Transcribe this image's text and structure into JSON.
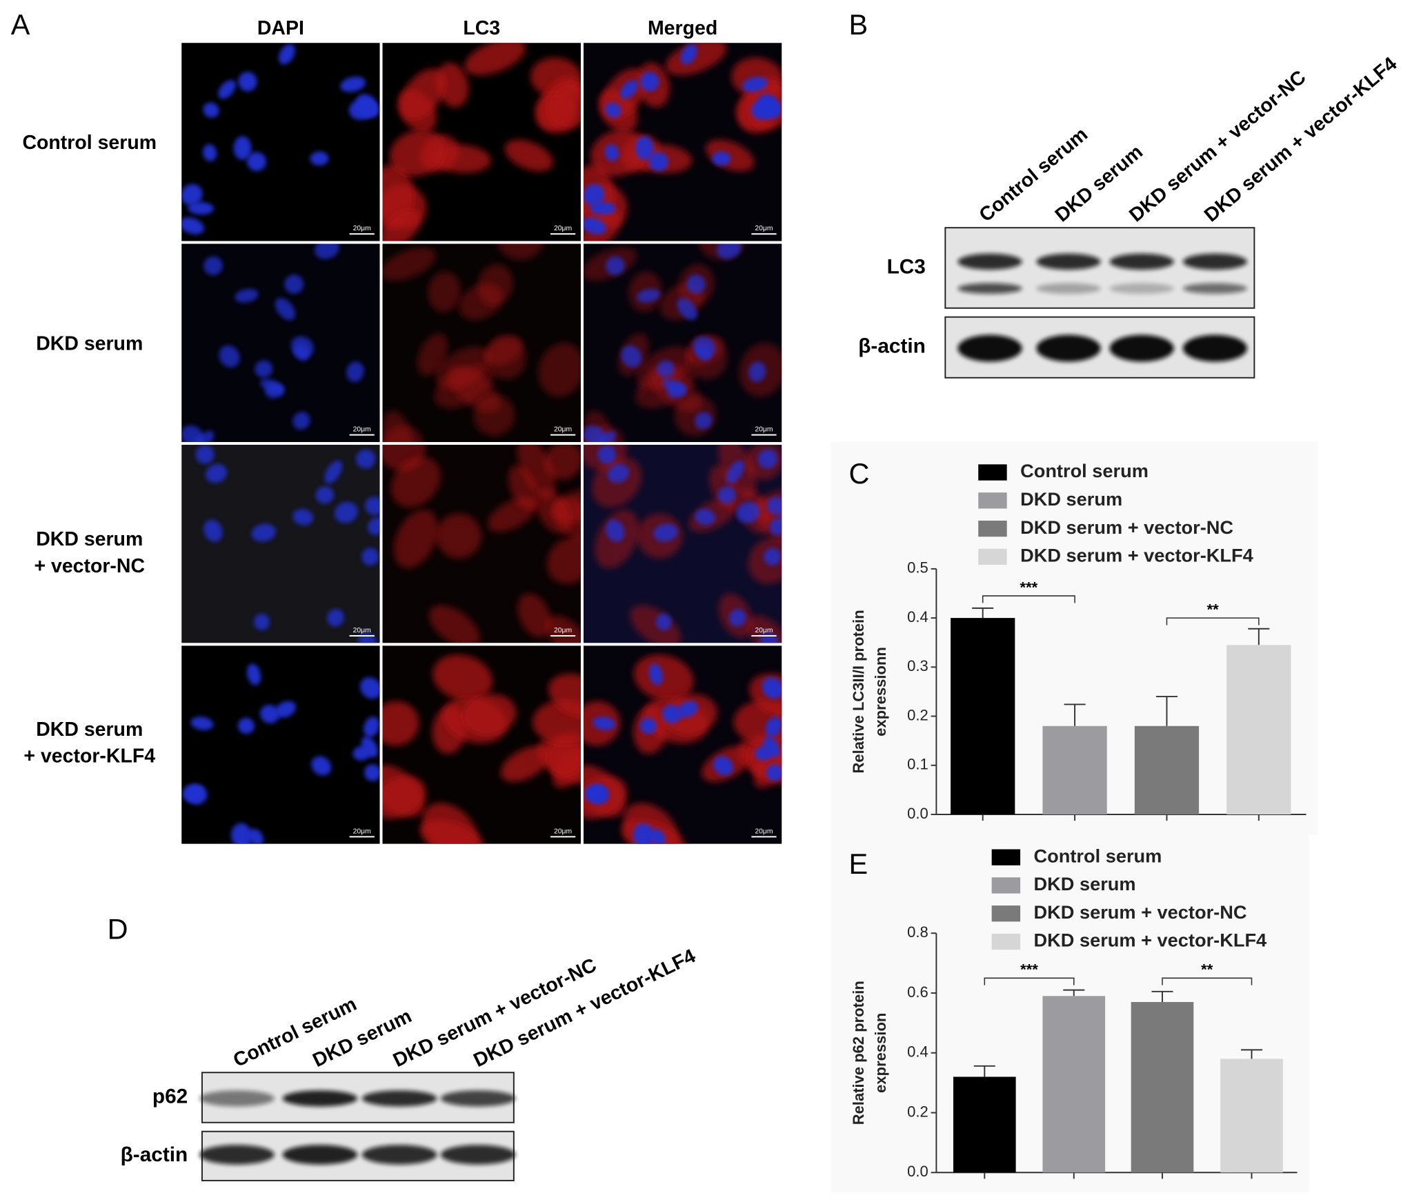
{
  "microscopy": {
    "panel_label": "A",
    "columns": [
      "DAPI",
      "LC3",
      "Merged"
    ],
    "rows": [
      [
        "Control serum"
      ],
      [
        "DKD serum"
      ],
      [
        "DKD serum",
        "+ vector-NC"
      ],
      [
        "DKD serum",
        "+ vector-KLF4"
      ]
    ],
    "scale_bar": "20μm"
  },
  "blot_b": {
    "panel_label": "B",
    "lanes": [
      "Control serum",
      "DKD serum",
      "DKD serum + vector-NC",
      "DKD serum + vector-KLF4"
    ],
    "bands": [
      "LC3",
      "β-actin"
    ]
  },
  "blot_d": {
    "panel_label": "D",
    "lanes": [
      "Control serum",
      "DKD serum",
      "DKD serum + vector-NC",
      "DKD serum + vector-KLF4"
    ],
    "bands": [
      "p62",
      "β-actin"
    ]
  },
  "chart_data": [
    {
      "type": "bar",
      "panel_label": "C",
      "ylabel": [
        "Relative LC3II/I protein",
        "expressionn"
      ],
      "ylim": [
        0,
        0.5
      ],
      "yticks": [
        {
          "value": 0,
          "label": "0.0"
        },
        0.1,
        0.2,
        0.3,
        0.4,
        0.5
      ],
      "series": [
        {
          "name": "Control serum",
          "color": "#000000",
          "values": [
            0.4
          ],
          "errors": [
            0.02
          ]
        },
        {
          "name": "DKD serum",
          "color": "#9b9ba0",
          "values": [
            0.18
          ],
          "errors": [
            0.044
          ]
        },
        {
          "name": "DKD serum + vector-NC",
          "color": "#7a7a7a",
          "values": [
            0.18
          ],
          "errors": [
            0.06
          ]
        },
        {
          "name": "DKD serum + vector-KLF4",
          "color": "#d6d6d6",
          "values": [
            0.345
          ],
          "errors": [
            0.033
          ]
        }
      ],
      "annotations": [
        {
          "text": "***",
          "y": 0.445
        },
        {
          "text": "**",
          "y": 0.4
        }
      ]
    },
    {
      "type": "bar",
      "panel_label": "E",
      "ylabel": [
        "Relative p62 protein",
        "expression"
      ],
      "ylim": [
        0,
        0.8
      ],
      "yticks": [
        {
          "value": 0,
          "label": "0.0"
        },
        0.2,
        0.4,
        0.6,
        0.8
      ],
      "series": [
        {
          "name": "Control serum",
          "color": "#000000",
          "values": [
            0.32
          ],
          "errors": [
            0.036
          ]
        },
        {
          "name": "DKD serum",
          "color": "#9b9ba0",
          "values": [
            0.59
          ],
          "errors": [
            0.02
          ]
        },
        {
          "name": "DKD serum + vector-NC",
          "color": "#7a7a7a",
          "values": [
            0.57
          ],
          "errors": [
            0.035
          ]
        },
        {
          "name": "DKD serum + vector-KLF4",
          "color": "#d6d6d6",
          "values": [
            0.38
          ],
          "errors": [
            0.03
          ]
        }
      ],
      "annotations": [
        {
          "text": "***",
          "y": 0.65
        },
        {
          "text": "**",
          "y": 0.65
        }
      ]
    }
  ]
}
